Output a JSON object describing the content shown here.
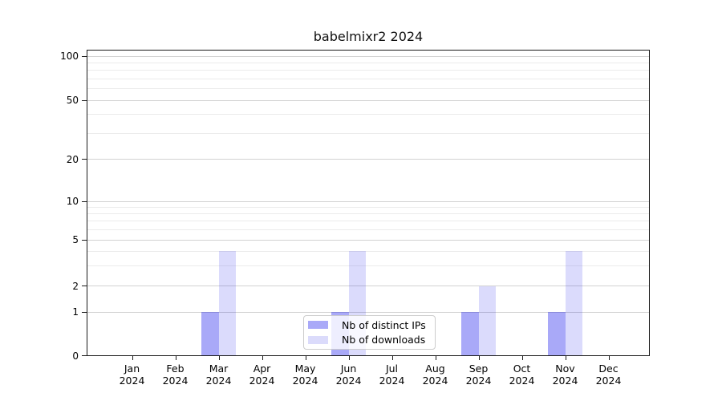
{
  "chart_data": {
    "type": "bar",
    "title": "babelmixr2 2024",
    "categories": [
      "Jan",
      "Feb",
      "Mar",
      "Apr",
      "May",
      "Jun",
      "Jul",
      "Aug",
      "Sep",
      "Oct",
      "Nov",
      "Dec"
    ],
    "category_year": "2024",
    "series": [
      {
        "name": "Nb of distinct IPs",
        "color_hex": "#a9a9f8",
        "color_rgba": "rgba(10,10,235,0.35)",
        "values": [
          0,
          0,
          1,
          0,
          0,
          1,
          0,
          0,
          1,
          0,
          1,
          0
        ]
      },
      {
        "name": "Nb of downloads",
        "color_hex": "#dbdbfb",
        "color_rgba": "rgba(10,10,235,0.145)",
        "values": [
          0,
          0,
          4,
          0,
          0,
          4,
          0,
          0,
          2,
          0,
          4,
          0
        ]
      }
    ],
    "yticks": [
      0,
      1,
      2,
      5,
      10,
      20,
      50,
      100
    ],
    "minor_yticks": [
      3,
      4,
      6,
      7,
      8,
      9,
      30,
      40,
      60,
      70,
      80,
      90
    ],
    "scale": "symlog",
    "ylim": [
      0,
      120
    ],
    "xlabel": "",
    "ylabel": "",
    "grid": true,
    "legend_position": "lower center"
  },
  "colors": {
    "grid_major": "#d2d2d2",
    "grid_minor": "#ebebeb",
    "axis_frame": "#1a1a1a",
    "legend_border": "#cccccc"
  }
}
